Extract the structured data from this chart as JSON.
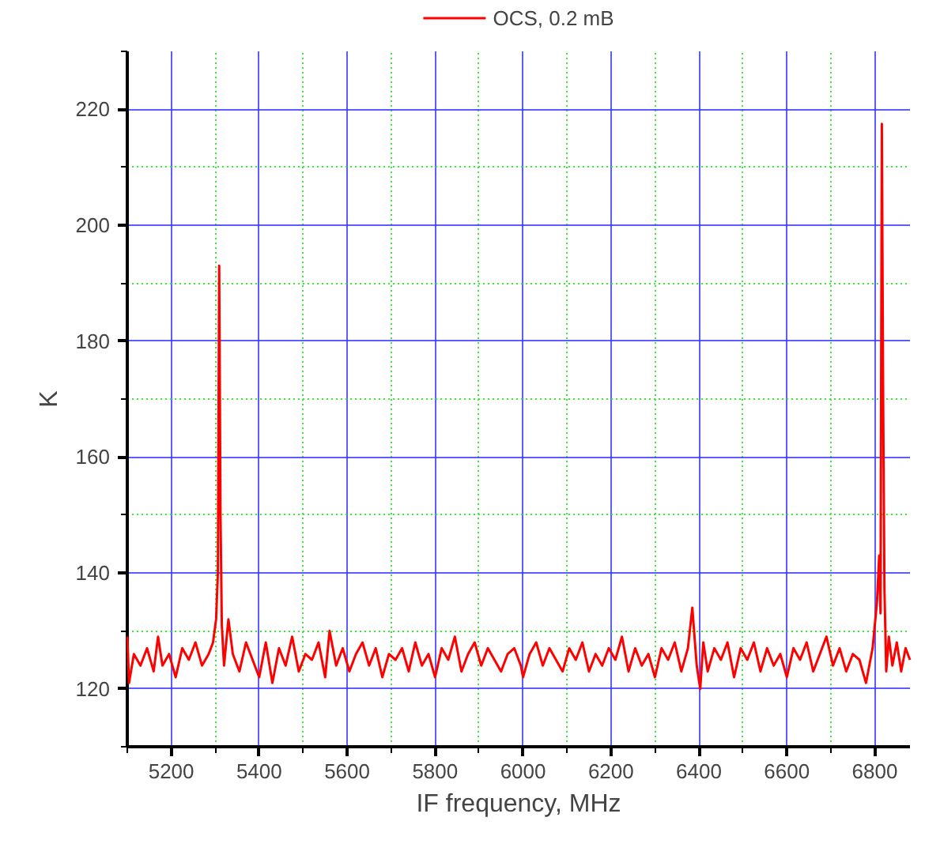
{
  "chart_data": {
    "type": "line",
    "xlabel": "IF frequency, MHz",
    "ylabel": "K",
    "xlim": [
      5100,
      6880
    ],
    "ylim": [
      110,
      230
    ],
    "xticks": [
      {
        "value": 5100,
        "label": null
      },
      5200,
      {
        "value": 5300,
        "label": null
      },
      5400,
      {
        "value": 5500,
        "label": null
      },
      5600,
      {
        "value": 5700,
        "label": null
      },
      5800,
      {
        "value": 5900,
        "label": null
      },
      6000,
      {
        "value": 6100,
        "label": null
      },
      6200,
      {
        "value": 6300,
        "label": null
      },
      6400,
      {
        "value": 6500,
        "label": null
      },
      6600,
      {
        "value": 6700,
        "label": null
      },
      6800
    ],
    "yticks": [
      {
        "value": 110,
        "label": null
      },
      120,
      {
        "value": 130,
        "label": null
      },
      140,
      {
        "value": 150,
        "label": null
      },
      160,
      {
        "value": 170,
        "label": null
      },
      180,
      {
        "value": 190,
        "label": null
      },
      200,
      {
        "value": 210,
        "label": null
      },
      220,
      {
        "value": 230,
        "label": null
      }
    ],
    "grid": true,
    "legend": "top",
    "line_style": "solid",
    "x": [
      5100,
      5104,
      5115,
      5130,
      5145,
      5160,
      5170,
      5180,
      5195,
      5210,
      5225,
      5240,
      5255,
      5270,
      5285,
      5295,
      5302,
      5306,
      5309,
      5312,
      5315,
      5320,
      5330,
      5340,
      5355,
      5370,
      5385,
      5400,
      5415,
      5430,
      5445,
      5460,
      5475,
      5490,
      5505,
      5520,
      5535,
      5550,
      5560,
      5575,
      5590,
      5605,
      5620,
      5635,
      5650,
      5665,
      5680,
      5695,
      5710,
      5725,
      5740,
      5755,
      5770,
      5785,
      5800,
      5815,
      5830,
      5845,
      5860,
      5875,
      5890,
      5905,
      5920,
      5935,
      5950,
      5965,
      5980,
      5995,
      6000,
      6015,
      6030,
      6045,
      6060,
      6075,
      6090,
      6105,
      6120,
      6135,
      6150,
      6165,
      6180,
      6195,
      6210,
      6225,
      6240,
      6255,
      6270,
      6285,
      6300,
      6315,
      6330,
      6345,
      6360,
      6375,
      6385,
      6395,
      6403,
      6410,
      6420,
      6435,
      6450,
      6465,
      6480,
      6495,
      6510,
      6525,
      6540,
      6555,
      6570,
      6585,
      6600,
      6615,
      6630,
      6645,
      6660,
      6675,
      6690,
      6705,
      6720,
      6735,
      6750,
      6765,
      6780,
      6795,
      6800,
      6805,
      6810,
      6813,
      6816,
      6819,
      6822,
      6826,
      6832,
      6840,
      6850,
      6860,
      6870,
      6880
    ],
    "series": [
      {
        "name": "OCS, 0.2 mB",
        "color": "#ff0000",
        "values": [
          129,
          121,
          126,
          124,
          127,
          123,
          129,
          124,
          126,
          122,
          127,
          125,
          128,
          124,
          126,
          128,
          132,
          140,
          193,
          150,
          131,
          124,
          132,
          126,
          123,
          128,
          125,
          122,
          128,
          121,
          127,
          124,
          129,
          123,
          126,
          125,
          128,
          122,
          130,
          124,
          127,
          123,
          126,
          128,
          124,
          127,
          122,
          126,
          125,
          127,
          123,
          128,
          124,
          126,
          122,
          127,
          125,
          129,
          123,
          126,
          128,
          124,
          127,
          125,
          123,
          126,
          127,
          124,
          122,
          126,
          128,
          124,
          127,
          125,
          123,
          127,
          125,
          128,
          123,
          126,
          124,
          127,
          125,
          129,
          123,
          127,
          124,
          126,
          122,
          127,
          125,
          128,
          123,
          127,
          134,
          124,
          120,
          128,
          123,
          127,
          125,
          128,
          122,
          127,
          125,
          128,
          123,
          127,
          124,
          126,
          122,
          127,
          125,
          128,
          123,
          126,
          129,
          124,
          127,
          123,
          126,
          125,
          121,
          127,
          131,
          135,
          143,
          133,
          217.5,
          170,
          137,
          123,
          129,
          124,
          128,
          123,
          127,
          125
        ]
      }
    ]
  }
}
